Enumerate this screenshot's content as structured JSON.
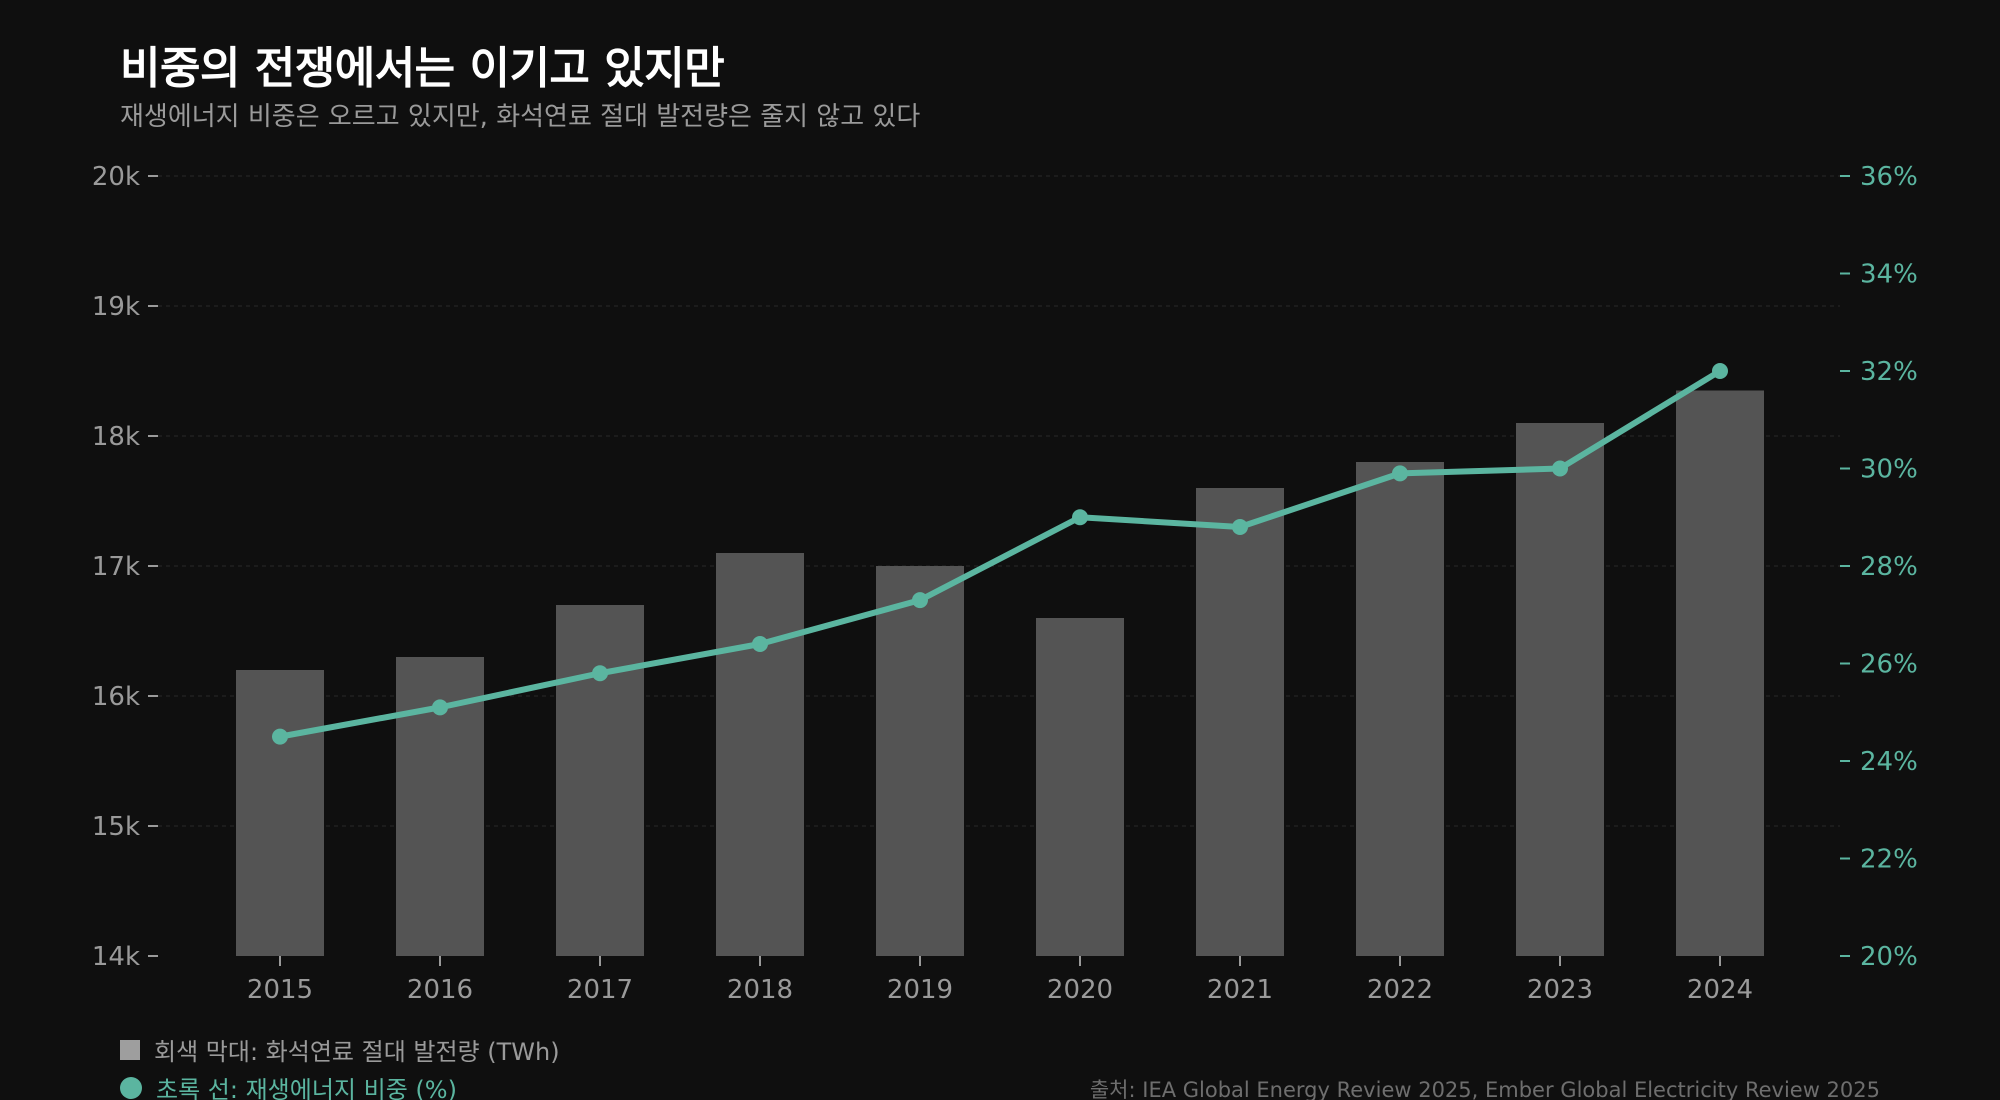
{
  "title": "비중의 전쟁에서는 이기고 있지만",
  "subtitle": "재생에너지 비중은 오르고 있지만, 화석연료 절대 발전량은 줄지 않고 있다",
  "colors": {
    "background": "#0f0f0f",
    "bar": "#545454",
    "line": "#5bb5a0",
    "left_axis": "#9a9a9a",
    "grid": "#2a2a2a"
  },
  "legend": {
    "bar_label": "회색 막대: 화석연료 절대 발전량 (TWh)",
    "line_label": "초록 선: 재생에너지 비중 (%)"
  },
  "source": "출처: IEA Global Energy Review 2025, Ember Global Electricity Review 2025",
  "chart_data": {
    "type": "bar",
    "title": "비중의 전쟁에서는 이기고 있지만",
    "subtitle": "재생에너지 비중은 오르고 있지만, 화석연료 절대 발전량은 줄지 않고 있다",
    "categories": [
      "2015",
      "2016",
      "2017",
      "2018",
      "2019",
      "2020",
      "2021",
      "2022",
      "2023",
      "2024"
    ],
    "series": [
      {
        "name": "회색 막대: 화석연료 절대 발전량 (TWh)",
        "type": "bar",
        "axis": "left",
        "values": [
          16200,
          16300,
          16700,
          17100,
          17000,
          16600,
          17600,
          17800,
          18100,
          18350
        ]
      },
      {
        "name": "초록 선: 재생에너지 비중 (%)",
        "type": "line",
        "axis": "right",
        "values": [
          24.5,
          25.1,
          25.8,
          26.4,
          27.3,
          29.0,
          28.8,
          29.9,
          30.0,
          32.0
        ]
      }
    ],
    "y_left": {
      "ylim": [
        14000,
        20000
      ],
      "ticks": [
        14000,
        15000,
        16000,
        17000,
        18000,
        19000,
        20000
      ],
      "tick_labels": [
        "14k",
        "15k",
        "16k",
        "17k",
        "18k",
        "19k",
        "20k"
      ]
    },
    "y_right": {
      "ylim": [
        20,
        36
      ],
      "ticks": [
        20,
        22,
        24,
        26,
        28,
        30,
        32,
        34,
        36
      ],
      "tick_labels": [
        "20%",
        "22%",
        "24%",
        "26%",
        "28%",
        "30%",
        "32%",
        "34%",
        "36%"
      ]
    },
    "grid": true,
    "legend_position": "bottom-left"
  }
}
